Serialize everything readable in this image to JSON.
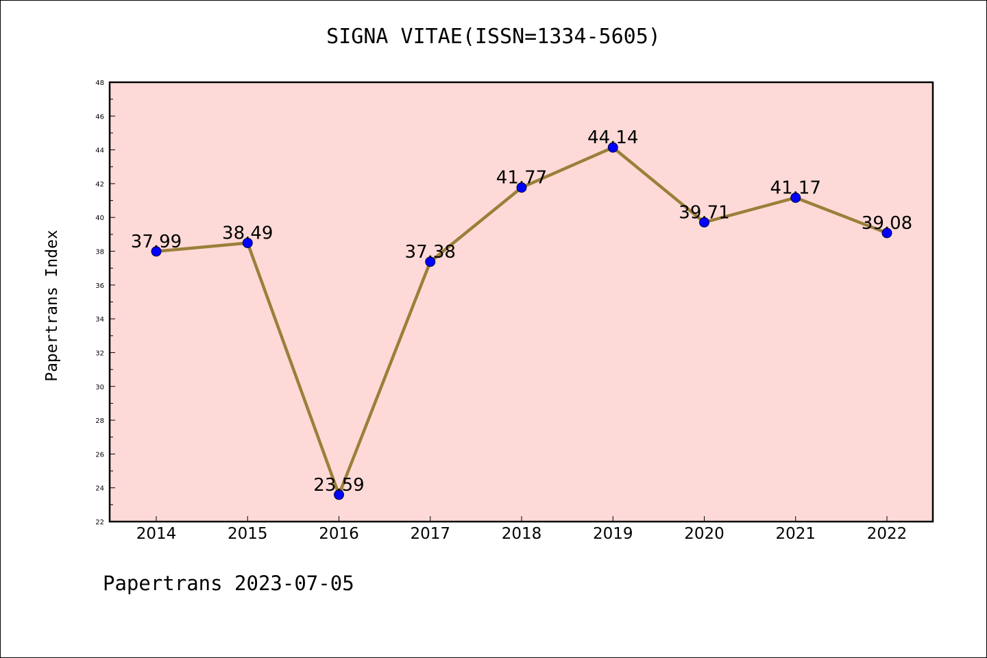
{
  "chart_data": {
    "type": "line",
    "title": "SIGNA VITAE(ISSN=1334-5605)",
    "xlabel": "",
    "ylabel": "Papertrans Index",
    "x": [
      "2014",
      "2015",
      "2016",
      "2017",
      "2018",
      "2019",
      "2020",
      "2021",
      "2022"
    ],
    "values": [
      37.99,
      38.49,
      23.59,
      37.38,
      41.77,
      44.14,
      39.71,
      41.17,
      39.08
    ],
    "data_labels": [
      "37.99",
      "38.49",
      "23.59",
      "37.38",
      "41.77",
      "44.14",
      "39.71",
      "41.17",
      "39.08"
    ],
    "ylim": [
      22,
      48
    ],
    "yticks": [
      "22",
      "24",
      "26",
      "28",
      "30",
      "32",
      "34",
      "36",
      "38",
      "40",
      "42",
      "44",
      "46",
      "48"
    ],
    "grid": false,
    "colors": {
      "plot_background": "#fddad7",
      "line": "#9b7f3a",
      "marker": "#0000ff"
    }
  },
  "footer": "Papertrans 2023-07-05"
}
